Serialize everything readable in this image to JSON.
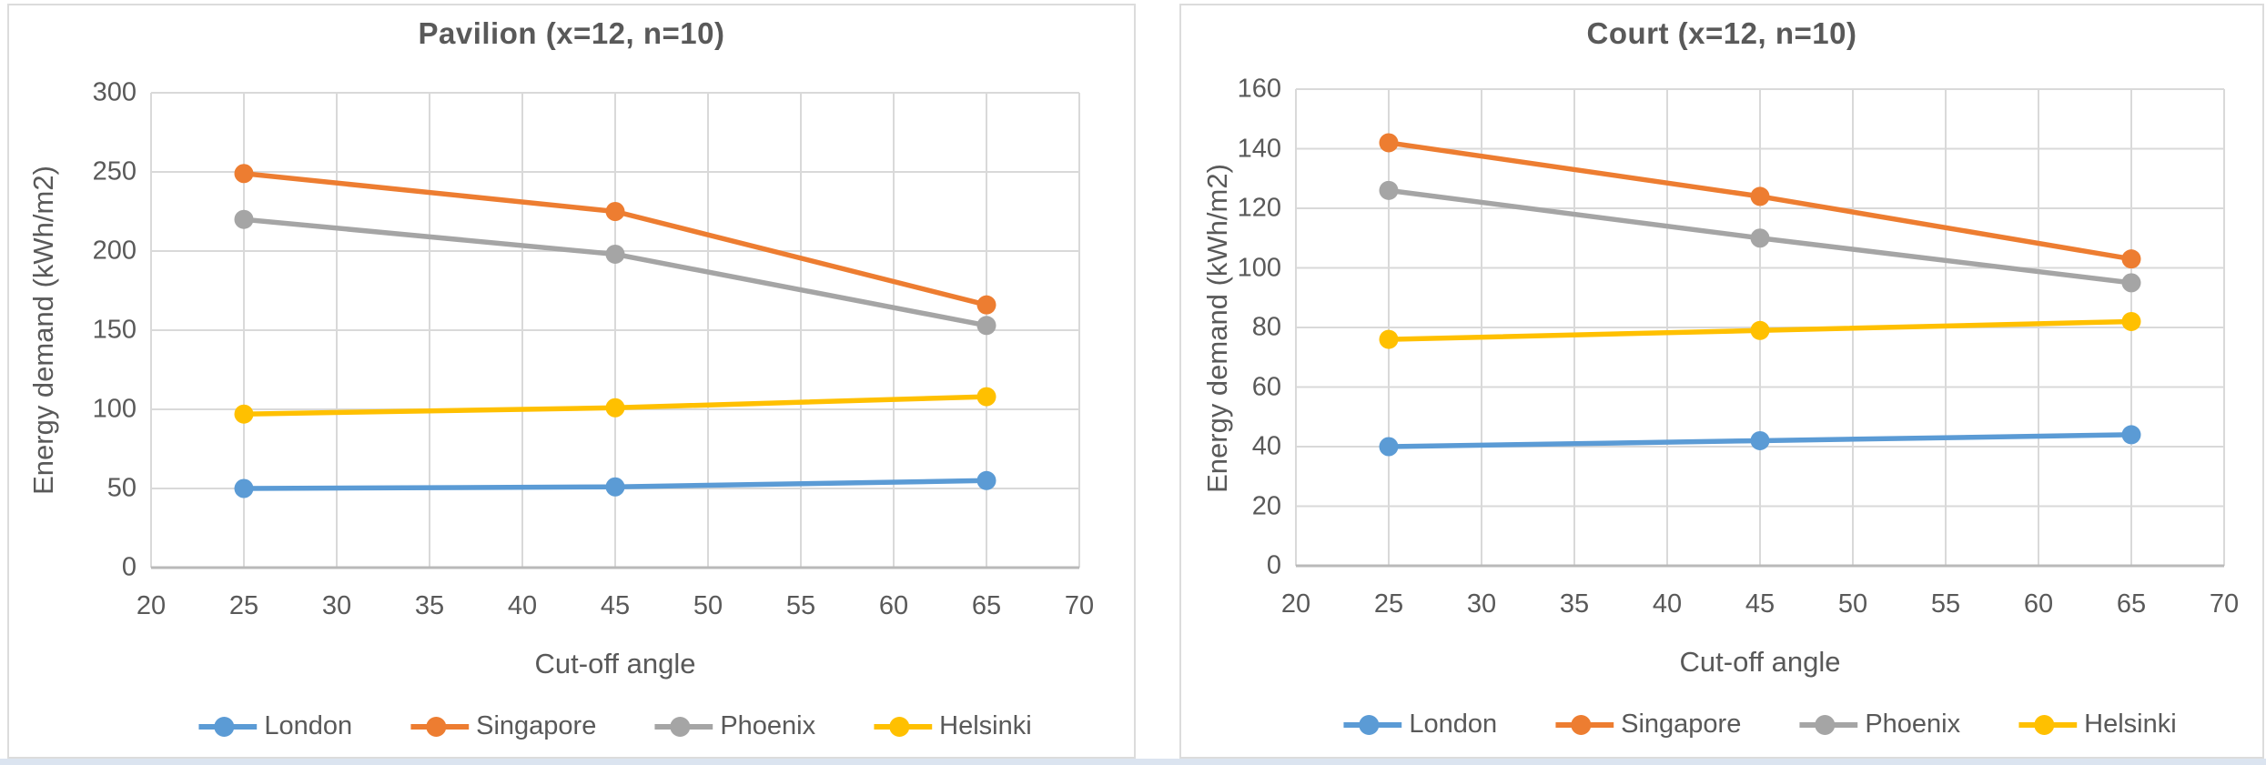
{
  "page": {
    "background": "#ffffff",
    "footer_strip_color": "#dbe4f0"
  },
  "colors": {
    "grid": "#d9d9d9",
    "axis_line": "#b9b9b9",
    "text": "#595959",
    "series_london": "#5B9BD5",
    "series_singapore": "#ED7D31",
    "series_phoenix": "#A5A5A5",
    "series_helsinki": "#FFC000"
  },
  "chart_data": [
    {
      "type": "line",
      "title": "Pavilion (x=12, n=10)",
      "xlabel": "Cut-off angle",
      "ylabel": "Energy demand (kWh/m2)",
      "x": [
        25,
        45,
        65
      ],
      "xlim": [
        20,
        70
      ],
      "ylim": [
        0,
        300
      ],
      "x_ticks": [
        20,
        25,
        30,
        35,
        40,
        45,
        50,
        55,
        60,
        65,
        70
      ],
      "y_ticks": [
        0,
        50,
        100,
        150,
        200,
        250,
        300
      ],
      "grid": "on",
      "legend_position": "bottom",
      "marker": "circle",
      "series": [
        {
          "name": "London",
          "color": "#5B9BD5",
          "values": [
            50,
            51,
            55
          ]
        },
        {
          "name": "Singapore",
          "color": "#ED7D31",
          "values": [
            249,
            225,
            166
          ]
        },
        {
          "name": "Phoenix",
          "color": "#A5A5A5",
          "values": [
            220,
            198,
            153
          ]
        },
        {
          "name": "Helsinki",
          "color": "#FFC000",
          "values": [
            97,
            101,
            108
          ]
        }
      ]
    },
    {
      "type": "line",
      "title": "Court (x=12, n=10)",
      "xlabel": "Cut-off angle",
      "ylabel": "Energy demand (kWh/m2)",
      "x": [
        25,
        45,
        65
      ],
      "xlim": [
        20,
        70
      ],
      "ylim": [
        0,
        160
      ],
      "x_ticks": [
        20,
        25,
        30,
        35,
        40,
        45,
        50,
        55,
        60,
        65,
        70
      ],
      "y_ticks": [
        0,
        20,
        40,
        60,
        80,
        100,
        120,
        140,
        160
      ],
      "grid": "on",
      "legend_position": "bottom",
      "marker": "circle",
      "series": [
        {
          "name": "London",
          "color": "#5B9BD5",
          "values": [
            40,
            42,
            44
          ]
        },
        {
          "name": "Singapore",
          "color": "#ED7D31",
          "values": [
            142,
            124,
            103
          ]
        },
        {
          "name": "Phoenix",
          "color": "#A5A5A5",
          "values": [
            126,
            110,
            95
          ]
        },
        {
          "name": "Helsinki",
          "color": "#FFC000",
          "values": [
            76,
            79,
            82
          ]
        }
      ]
    }
  ]
}
